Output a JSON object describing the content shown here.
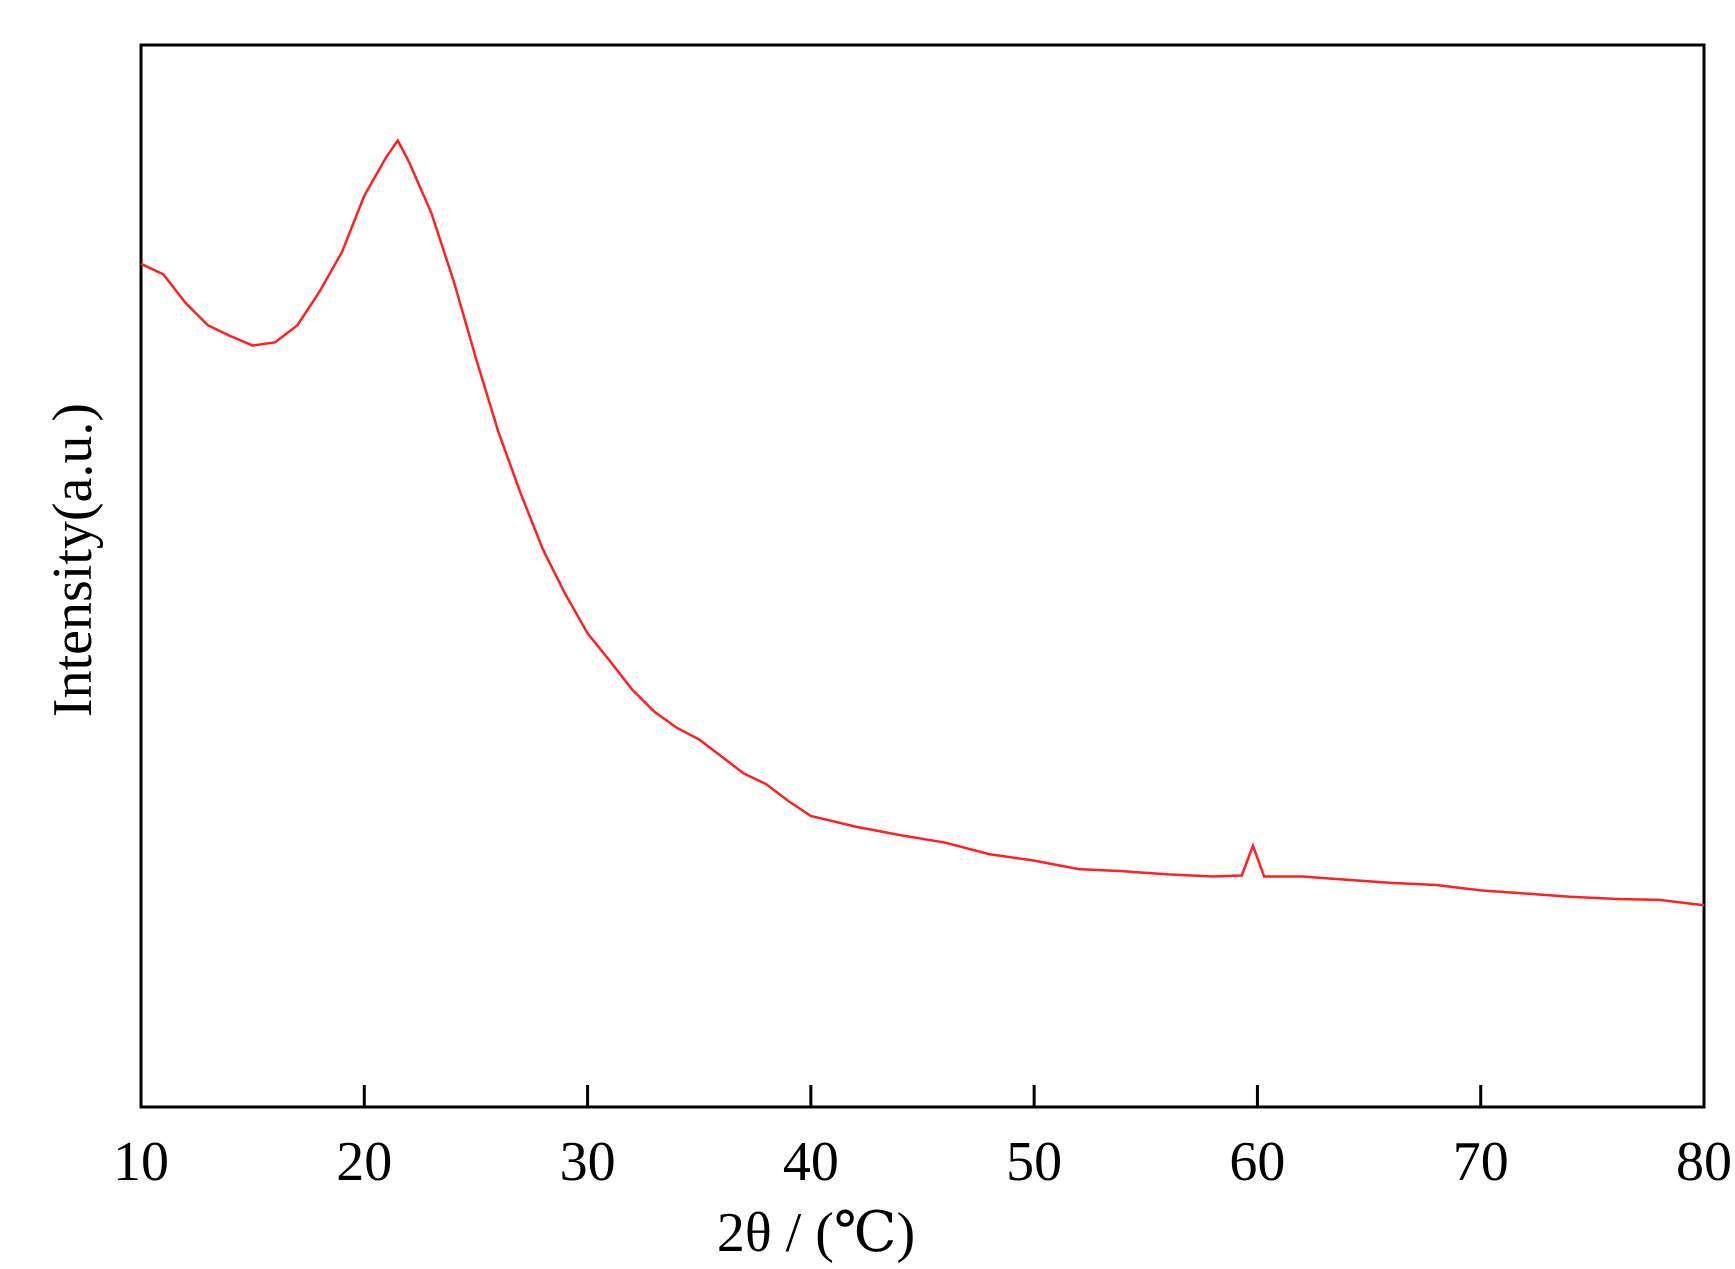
{
  "chart_data": {
    "type": "line",
    "xlabel": "2θ / (℃)",
    "ylabel": "Intensity(a.u.)",
    "x": [
      10,
      11,
      12,
      13,
      14,
      15,
      16,
      17,
      18,
      19,
      20,
      21,
      21.5,
      22,
      23,
      24,
      25,
      26,
      27,
      28,
      29,
      30,
      31,
      32,
      33,
      34,
      35,
      36,
      37,
      38,
      39,
      40,
      42,
      44,
      46,
      48,
      50,
      52,
      54,
      56,
      58,
      59.3,
      59.8,
      60.3,
      62,
      64,
      66,
      68,
      70,
      72,
      74,
      76,
      78,
      80
    ],
    "series": [
      {
        "name": "Intensity",
        "color": "#ff2020",
        "values": [
          79.4,
          78.4,
          75.7,
          73.6,
          72.6,
          71.7,
          72.0,
          73.6,
          76.8,
          80.5,
          85.8,
          89.5,
          91.0,
          89.0,
          84.2,
          77.8,
          70.5,
          63.6,
          57.8,
          52.5,
          48.3,
          44.6,
          42.0,
          39.3,
          37.2,
          35.7,
          34.6,
          33.0,
          31.4,
          30.4,
          28.8,
          27.4,
          26.4,
          25.6,
          24.9,
          23.8,
          23.2,
          22.4,
          22.2,
          21.9,
          21.7,
          21.8,
          24.6,
          21.7,
          21.7,
          21.4,
          21.1,
          20.9,
          20.4,
          20.1,
          19.8,
          19.6,
          19.5,
          19.0
        ]
      }
    ],
    "xlim": [
      10,
      80
    ],
    "xticks": [
      10,
      20,
      30,
      40,
      50,
      60,
      70,
      80
    ],
    "ylim": [
      0,
      100
    ]
  }
}
